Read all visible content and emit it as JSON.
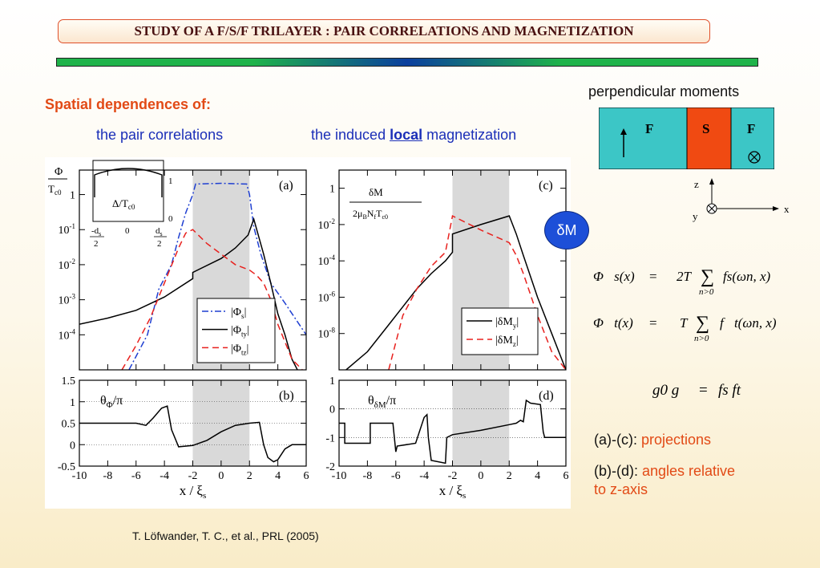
{
  "slide_title": "STUDY OF A F/S/F TRILAYER : PAIR CORRELATIONS AND MAGNETIZATION",
  "heading": "Spatial dependences of:",
  "sub_pair": "the pair correlations",
  "sub_mag_pre": "the induced ",
  "sub_mag_bold": "local",
  "sub_mag_post": " magnetization",
  "perp_title": "perpendicular moments",
  "layers": {
    "f_left": "F",
    "s": "S",
    "f_right": "F"
  },
  "axes_labels": {
    "z": "z",
    "y": "y",
    "x": "x"
  },
  "bubble": "δM",
  "eq1": {
    "lhs": "Φ⃗s(x)",
    "eq": "=",
    "pre": "2T",
    "sum": "∑",
    "sub": "n>0",
    "post": "fs(ωn, x)"
  },
  "eq2": {
    "lhs": "Φ⃗t(x)",
    "eq": "=",
    "pre": "T",
    "sum": "∑",
    "sub": "n>0",
    "post": "f⃗t(ωn, x)"
  },
  "geq": {
    "lhs": "g0 g",
    "eq": "=",
    "rhs": "fs ft"
  },
  "note1": {
    "label": "(a)-(c): ",
    "text": "projections"
  },
  "note2": {
    "label": "(b)-(d): ",
    "text1": "angles relative",
    "text2": "to z-axis"
  },
  "citation": "T. Löfwander, T. C., et al., PRL (2005)",
  "colors": {
    "accent_red": "#e24a16",
    "title_border": "#e0502a",
    "blue_text": "#1b2fb8",
    "f_layer": "#3cc6c6",
    "s_layer": "#f04a12",
    "shade": "#d9d9d9",
    "bubble": "#1d4fd8"
  },
  "chart_data": [
    {
      "panel": "(a)",
      "type": "line",
      "yscale": "log",
      "ylabel": "Φ / Tc0",
      "xlim": [
        -10,
        6
      ],
      "ylim": [
        1e-05,
        5
      ],
      "x_ticks": [
        "-10",
        "-8",
        "-6",
        "-4",
        "-2",
        "0",
        "2",
        "4",
        "6"
      ],
      "y_ticks": [
        "10-4",
        "10-3",
        "10-2",
        "10-1",
        "1"
      ],
      "shaded_region": [
        -2,
        2
      ],
      "legend": [
        "|Φs|",
        "|Φty|",
        "|Φtz|"
      ],
      "inset": {
        "label": "Δ/Tc0",
        "yticks": [
          "0",
          "1"
        ],
        "xticks": [
          "-ds/2",
          "0",
          "ds/2"
        ]
      },
      "series": [
        {
          "name": "|Φs|",
          "style": "dash-dot",
          "color": "#1f3fd1",
          "x": [
            -6.5,
            -5.2,
            -4.4,
            -3.5,
            -3.0,
            -2.5,
            -2.0,
            -1.8,
            0.0,
            1.8,
            2.0,
            2.3,
            2.8,
            3.5,
            4.5,
            5.5,
            6.0
          ],
          "y": [
            1e-05,
            0.0001,
            0.002,
            0.01,
            0.06,
            0.3,
            1.0,
            2.0,
            2.1,
            2.0,
            1.0,
            0.12,
            0.02,
            0.003,
            0.0008,
            0.0002,
            0.0001
          ]
        },
        {
          "name": "|Φty|",
          "style": "solid",
          "color": "#000000",
          "x": [
            -10,
            -8,
            -6,
            -4,
            -2,
            -2.0,
            0,
            1.0,
            1.9,
            2.3,
            3.0,
            3.5,
            4.0,
            4.5,
            5.0,
            5.5,
            6.0
          ],
          "y": [
            0.0002,
            0.0003,
            0.0005,
            0.0012,
            0.004,
            0.006,
            0.015,
            0.03,
            0.07,
            0.2,
            0.02,
            0.003,
            0.0004,
            0.0001,
            2e-05,
            8e-06,
            5e-06
          ]
        },
        {
          "name": "|Φtz|",
          "style": "dashed",
          "color": "#e8211e",
          "x": [
            -7.0,
            -6.0,
            -5.0,
            -4.0,
            -3.0,
            -2.5,
            -2.0,
            -1.0,
            0.0,
            1.0,
            2.0,
            2.5,
            3.0,
            3.5,
            4.0,
            5.0,
            6.0
          ],
          "y": [
            1e-05,
            5e-05,
            0.0003,
            0.003,
            0.03,
            0.08,
            0.1,
            0.04,
            0.02,
            0.01,
            0.007,
            0.005,
            0.003,
            0.001,
            0.0002,
            2e-05,
            5e-06
          ]
        }
      ]
    },
    {
      "panel": "(c)",
      "type": "line",
      "yscale": "log",
      "ylabel": "δM / (2μB Nf Tc0)",
      "xlim": [
        -10,
        6
      ],
      "ylim": [
        1e-10,
        10
      ],
      "y_ticks": [
        "10-8",
        "10-6",
        "10-4",
        "10-2",
        "1"
      ],
      "shaded_region": [
        -2,
        2
      ],
      "legend": [
        "|δMy|",
        "|δMz|"
      ],
      "series": [
        {
          "name": "|δMy|",
          "style": "solid",
          "color": "#000000",
          "x": [
            -9.5,
            -8,
            -6.5,
            -5.5,
            -4.5,
            -3.5,
            -2.5,
            -2,
            -2,
            0,
            2,
            2.5,
            3.0,
            4.0,
            5.0,
            6.0
          ],
          "y": [
            1e-10,
            1e-09,
            3e-08,
            3e-07,
            3e-06,
            2e-05,
            0.0001,
            0.0003,
            0.003,
            0.01,
            0.03,
            0.003,
            0.0002,
            1e-06,
            1e-08,
            1e-10
          ]
        },
        {
          "name": "|δMz|",
          "style": "dashed",
          "color": "#e8211e",
          "x": [
            -6.5,
            -5.5,
            -4.5,
            -3.5,
            -2.5,
            -2,
            0,
            2,
            2.5,
            3.0,
            4.0,
            5.0,
            6.0
          ],
          "y": [
            1e-10,
            1e-07,
            3e-06,
            5e-05,
            0.0003,
            0.03,
            0.005,
            0.001,
            0.0002,
            2e-05,
            1e-07,
            1e-09,
            1e-10
          ]
        }
      ]
    },
    {
      "panel": "(b)",
      "type": "line",
      "ylabel": "θΦ/π",
      "xlabel": "x / ξs",
      "xlim": [
        -10,
        6
      ],
      "ylim": [
        -0.5,
        1.5
      ],
      "y_ticks": [
        "-0.5",
        "0",
        "0.5",
        "1",
        "1.5"
      ],
      "x_ticks": [
        "-10",
        "-8",
        "-6",
        "-4",
        "-2",
        "0",
        "2",
        "4",
        "6"
      ],
      "shaded_region": [
        -2,
        2
      ],
      "series": [
        {
          "name": "",
          "style": "solid",
          "color": "#000000",
          "x": [
            -10,
            -6,
            -5.3,
            -4.8,
            -4.2,
            -3.8,
            -3.5,
            -3.0,
            -2.0,
            -1.0,
            0.0,
            1.0,
            2.0,
            2.7,
            3.0,
            3.3,
            3.7,
            4.0,
            4.5,
            5.0,
            6.0
          ],
          "y": [
            0.5,
            0.5,
            0.45,
            0.62,
            0.85,
            0.9,
            0.35,
            -0.05,
            -0.02,
            0.1,
            0.3,
            0.45,
            0.5,
            0.52,
            0.0,
            -0.3,
            -0.4,
            -0.35,
            -0.1,
            0.0,
            0.0
          ]
        }
      ]
    },
    {
      "panel": "(d)",
      "type": "line",
      "ylabel": "θδM/π",
      "xlabel": "x / ξs",
      "xlim": [
        -10,
        6
      ],
      "ylim": [
        -2,
        1
      ],
      "y_ticks": [
        "-2",
        "-1",
        "0",
        "1"
      ],
      "x_ticks": [
        "-10",
        "-8",
        "-6",
        "-4",
        "-2",
        "0",
        "2",
        "4",
        "6"
      ],
      "shaded_region": [
        -2,
        2
      ],
      "series": [
        {
          "name": "",
          "style": "solid",
          "color": "#000000",
          "x": [
            -10,
            -9.6,
            -9.6,
            -7.8,
            -7.8,
            -6.2,
            -6.0,
            -5.9,
            -4.6,
            -4.0,
            -3.8,
            -3.7,
            -3.5,
            -2.5,
            -2.4,
            -2.0,
            0.0,
            2.0,
            2.5,
            2.8,
            3.0,
            3.2,
            3.5,
            4.2,
            4.4,
            4.5,
            5.0,
            6.0
          ],
          "y": [
            -0.5,
            -0.5,
            -1.2,
            -1.2,
            -0.5,
            -0.5,
            -1.5,
            -1.3,
            -1.2,
            -0.3,
            -0.2,
            -1.0,
            -1.8,
            -1.9,
            -1.0,
            -0.9,
            -0.75,
            -0.55,
            -0.5,
            -0.4,
            -0.45,
            0.3,
            0.2,
            0.15,
            -0.8,
            -1.0,
            -1.0,
            -1.0
          ]
        }
      ]
    }
  ]
}
